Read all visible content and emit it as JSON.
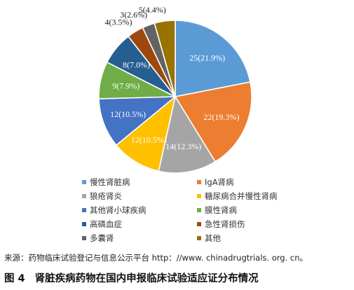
{
  "chart_data": {
    "type": "pie",
    "start_angle_deg": 0,
    "direction": "clockwise",
    "slices": [
      {
        "name": "慢性肾脏病",
        "value": 25,
        "pct": "21.9%",
        "label": "25(21.9%)",
        "color": "#5b9bd5"
      },
      {
        "name": "IgA肾病",
        "value": 22,
        "pct": "19.3%",
        "label": "22(19.3%)",
        "color": "#ed7d31"
      },
      {
        "name": "狼疮肾炎",
        "value": 14,
        "pct": "12.3%",
        "label": "14(12.3%)",
        "color": "#a5a5a5"
      },
      {
        "name": "糖尿病合并慢性肾病",
        "value": 12,
        "pct": "10.5%",
        "label": "12(10.5%)",
        "color": "#ffc000"
      },
      {
        "name": "其他肾小球疾病",
        "value": 12,
        "pct": "10.5%",
        "label": "12(10.5%)",
        "color": "#4472c4"
      },
      {
        "name": "膜性肾病",
        "value": 9,
        "pct": "7.9%",
        "label": "9(7.9%)",
        "color": "#70ad47"
      },
      {
        "name": "高磷血症",
        "value": 8,
        "pct": "7.0%",
        "label": "8(7.0%)",
        "color": "#255e91"
      },
      {
        "name": "急性肾损伤",
        "value": 4,
        "pct": "3.5%",
        "label": "4(3.5%)",
        "color": "#9e480e"
      },
      {
        "name": "多囊肾",
        "value": 3,
        "pct": "2.6%",
        "label": "3(2.6%)",
        "color": "#636363"
      },
      {
        "name": "其他",
        "value": 5,
        "pct": "4.4%",
        "label": "5(4.4%)",
        "color": "#997300"
      }
    ],
    "legend_position": "bottom"
  },
  "source_text": "来源：药物临床试验登记与信息公示平台 http：//www. chinadrugtrials. org. cn。",
  "caption": {
    "figure_number": "图 4",
    "title": "肾脏疾病药物在国内申报临床试验适应证分布情况"
  }
}
